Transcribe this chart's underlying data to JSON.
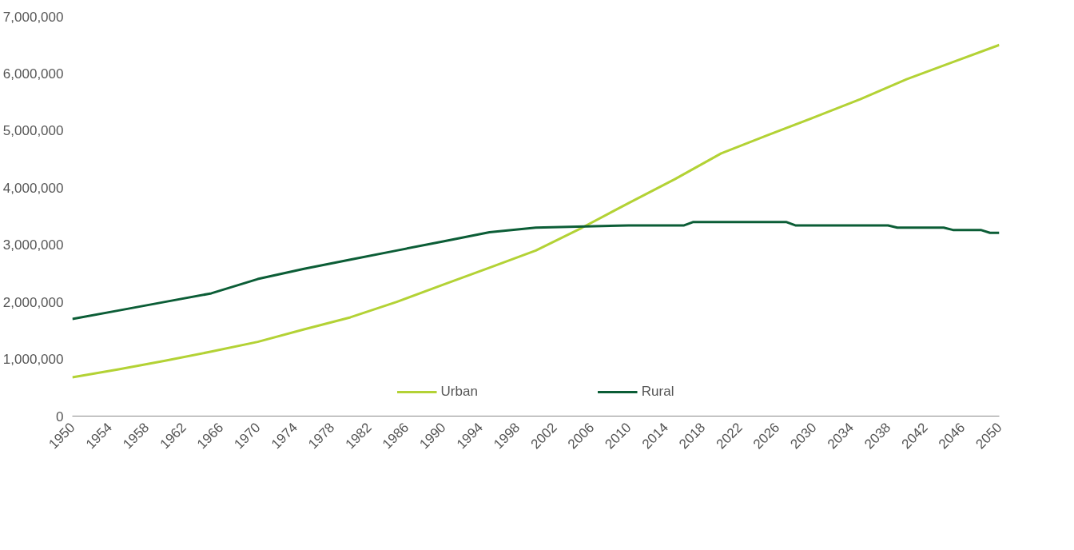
{
  "chart_data": {
    "type": "line",
    "series": [
      {
        "name": "Urban",
        "color": "#b3d235",
        "x": [
          1950,
          1955,
          1960,
          1965,
          1970,
          1975,
          1980,
          1985,
          1990,
          1995,
          2000,
          2005,
          2010,
          2015,
          2020,
          2025,
          2030,
          2035,
          2040,
          2045,
          2050
        ],
        "values": [
          680000,
          820000,
          970000,
          1130000,
          1300000,
          1520000,
          1730000,
          2000000,
          2300000,
          2600000,
          2900000,
          3300000,
          3730000,
          4150000,
          4600000,
          4920000,
          5230000,
          5550000,
          5900000,
          6200000,
          6500000
        ]
      },
      {
        "name": "Rural",
        "color": "#0b5d36",
        "x": [
          1950,
          1955,
          1960,
          1965,
          1970,
          1975,
          1980,
          1985,
          1990,
          1995,
          2000,
          2010,
          2016,
          2017,
          2027,
          2028,
          2038,
          2039,
          2044,
          2045,
          2048,
          2049,
          2050
        ],
        "values": [
          1700000,
          1850000,
          2000000,
          2150000,
          2400000,
          2580000,
          2740000,
          2900000,
          3060000,
          3220000,
          3300000,
          3340000,
          3340000,
          3400000,
          3400000,
          3340000,
          3340000,
          3300000,
          3300000,
          3260000,
          3260000,
          3210000,
          3210000
        ]
      }
    ],
    "xlim": [
      1950,
      2050
    ],
    "xticks": [
      1950,
      1954,
      1958,
      1962,
      1966,
      1970,
      1974,
      1978,
      1982,
      1986,
      1990,
      1994,
      1998,
      2002,
      2006,
      2010,
      2014,
      2018,
      2022,
      2026,
      2030,
      2034,
      2038,
      2042,
      2046,
      2050
    ],
    "ylim": [
      0,
      7000000
    ],
    "yticks": [
      0,
      {
        "value": 1000000,
        "label": "1,000,000"
      },
      {
        "value": 2000000,
        "label": "2,000,000"
      },
      {
        "value": 3000000,
        "label": "3,000,000"
      },
      {
        "value": 4000000,
        "label": "4,000,000"
      },
      {
        "value": 5000000,
        "label": "5,000,000"
      },
      {
        "value": 6000000,
        "label": "6,000,000"
      },
      {
        "value": 7000000,
        "label": "7,000,000"
      }
    ],
    "grid": false,
    "legend": "bottom",
    "marker": "none",
    "line_style": "solid"
  }
}
